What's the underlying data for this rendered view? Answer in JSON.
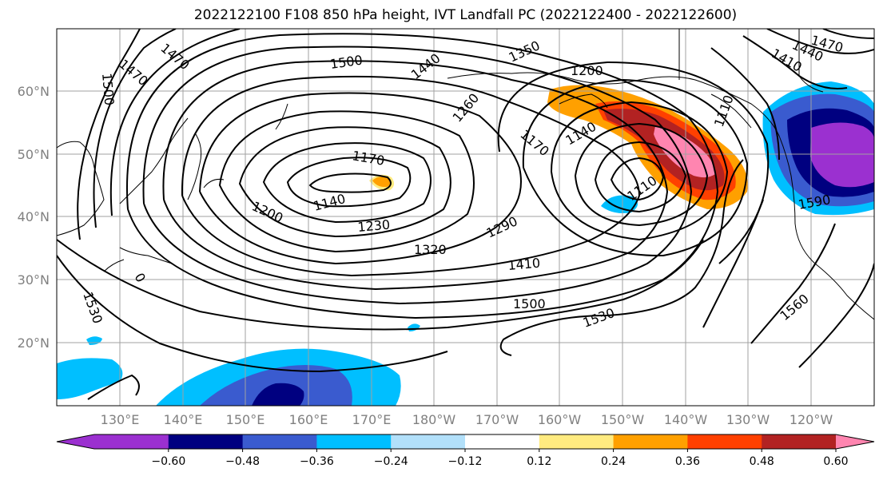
{
  "title": "2022122100 F108 850 hPa height, IVT Landfall PC (2022122400 - 2022122600)",
  "lat_labels": [
    "60°N",
    "50°N",
    "40°N",
    "30°N",
    "20°N"
  ],
  "lon_labels": [
    "130°E",
    "140°E",
    "150°E",
    "160°E",
    "170°E",
    "180°W",
    "170°W",
    "160°W",
    "150°W",
    "140°W",
    "130°W",
    "120°W"
  ],
  "contour_labels": [
    "1470",
    "1500",
    "1470",
    "1500",
    "1440",
    "1350",
    "1200",
    "1260",
    "1470",
    "1440",
    "1410",
    "1170",
    "1140",
    "1140",
    "1170",
    "1110",
    "1110",
    "1200",
    "1230",
    "1290",
    "1320",
    "1410",
    "1500",
    "1530",
    "1530",
    "1560",
    "1590",
    "0"
  ],
  "colorbar": {
    "ticks": [
      "−0.60",
      "−0.48",
      "−0.36",
      "−0.24",
      "−0.12",
      "0.12",
      "0.24",
      "0.36",
      "0.48",
      "0.60"
    ],
    "colors": [
      "#9b30d0",
      "#000080",
      "#3a5bcf",
      "#00bfff",
      "#b2e0fa",
      "#ffffff",
      "#ffeb80",
      "#ffa000",
      "#ff4000",
      "#b22222",
      "#ff85b0",
      "#ff85b0"
    ]
  },
  "colors": {
    "contour": "#000000",
    "grid": "#a0a0a0",
    "axis_label": "#808080"
  }
}
